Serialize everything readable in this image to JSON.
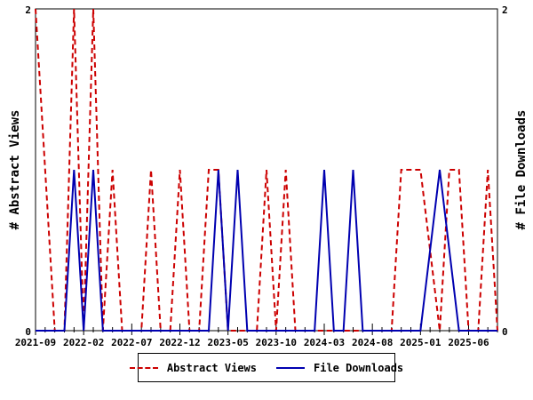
{
  "chart_data": {
    "type": "line",
    "title": "",
    "grid": false,
    "legend_position": "bottom-center",
    "x_axis": {
      "kind": "date-month",
      "start": "2021-09",
      "end": "2025-09",
      "major_tick_labels": [
        "2021-09",
        "2022-02",
        "2022-07",
        "2022-12",
        "2023-05",
        "2023-10",
        "2024-03",
        "2024-08",
        "2025-01",
        "2025-06"
      ],
      "major_tick_interval_months": 5,
      "minor_tick_interval_months": 1
    },
    "y_axis_left": {
      "label": "# Abstract Views",
      "range": [
        0,
        2
      ],
      "tick_values": [
        0,
        2
      ],
      "tick_labels": [
        "0",
        "2"
      ]
    },
    "y_axis_right": {
      "label": "# File Downloads",
      "range": [
        0,
        2
      ],
      "tick_values": [
        0,
        2
      ],
      "tick_labels": [
        "0",
        "2"
      ]
    },
    "series": [
      {
        "name": "Abstract Views",
        "color": "#cc0000",
        "style": "dashed",
        "points": [
          [
            "2021-09",
            2
          ],
          [
            "2021-11",
            0
          ],
          [
            "2021-12",
            0
          ],
          [
            "2022-01",
            2
          ],
          [
            "2022-02",
            0
          ],
          [
            "2022-03",
            2
          ],
          [
            "2022-04",
            0
          ],
          [
            "2022-05",
            1
          ],
          [
            "2022-06",
            0
          ],
          [
            "2022-08",
            0
          ],
          [
            "2022-09",
            1
          ],
          [
            "2022-10",
            0
          ],
          [
            "2022-11",
            0
          ],
          [
            "2022-12",
            1
          ],
          [
            "2023-01",
            0
          ],
          [
            "2023-02",
            0
          ],
          [
            "2023-03",
            1
          ],
          [
            "2023-04",
            1
          ],
          [
            "2023-05",
            0
          ],
          [
            "2023-08",
            0
          ],
          [
            "2023-09",
            1
          ],
          [
            "2023-10",
            0
          ],
          [
            "2023-11",
            1
          ],
          [
            "2023-12",
            0
          ],
          [
            "2024-10",
            0
          ],
          [
            "2024-11",
            1
          ],
          [
            "2025-01",
            1
          ],
          [
            "2025-03",
            0
          ],
          [
            "2025-04",
            1
          ],
          [
            "2025-05",
            1
          ],
          [
            "2025-06",
            0
          ],
          [
            "2025-07",
            0
          ],
          [
            "2025-08",
            1
          ],
          [
            "2025-09",
            0
          ]
        ]
      },
      {
        "name": "File Downloads",
        "color": "#0000b0",
        "style": "solid",
        "points": [
          [
            "2021-09",
            0
          ],
          [
            "2021-12",
            0
          ],
          [
            "2022-01",
            1
          ],
          [
            "2022-02",
            0
          ],
          [
            "2022-03",
            1
          ],
          [
            "2022-04",
            0
          ],
          [
            "2023-03",
            0
          ],
          [
            "2023-04",
            1
          ],
          [
            "2023-05",
            0
          ],
          [
            "2023-06",
            1
          ],
          [
            "2023-07",
            0
          ],
          [
            "2024-02",
            0
          ],
          [
            "2024-03",
            1
          ],
          [
            "2024-04",
            0
          ],
          [
            "2024-05",
            0
          ],
          [
            "2024-06",
            1
          ],
          [
            "2024-07",
            0
          ],
          [
            "2025-01",
            0
          ],
          [
            "2025-03",
            1
          ],
          [
            "2025-05",
            0
          ],
          [
            "2025-09",
            0
          ]
        ]
      }
    ]
  },
  "legend": {
    "items": [
      {
        "label": "Abstract Views",
        "sample": "red-dashed-line"
      },
      {
        "label": "File Downloads",
        "sample": "blue-solid-line"
      }
    ]
  }
}
